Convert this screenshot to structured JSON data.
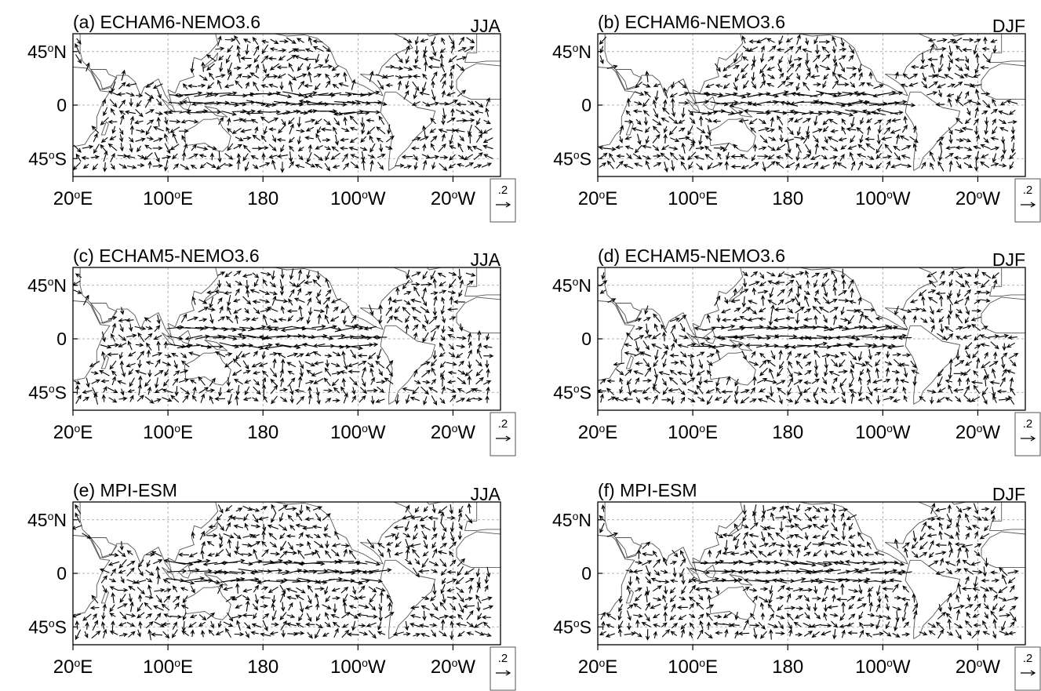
{
  "figure": {
    "panels": [
      {
        "id": "a",
        "title": "(a) ECHAM6-NEMO3.6",
        "season": "JJA",
        "seed": 11
      },
      {
        "id": "b",
        "title": "(b) ECHAM6-NEMO3.6",
        "season": "DJF",
        "seed": 23
      },
      {
        "id": "c",
        "title": "(c) ECHAM5-NEMO3.6",
        "season": "JJA",
        "seed": 37
      },
      {
        "id": "d",
        "title": "(d) ECHAM5-NEMO3.6",
        "season": "DJF",
        "seed": 41
      },
      {
        "id": "e",
        "title": "(e) MPI-ESM",
        "season": "JJA",
        "seed": 53
      },
      {
        "id": "f",
        "title": "(f) MPI-ESM",
        "season": "DJF",
        "seed": 67
      }
    ],
    "y_ticks": [
      {
        "value": 45,
        "deg": "45",
        "sup": "o",
        "hemi": "N"
      },
      {
        "value": 0,
        "deg": "0",
        "sup": "",
        "hemi": ""
      },
      {
        "value": -45,
        "deg": "45",
        "sup": "o",
        "hemi": "S"
      }
    ],
    "x_ticks": [
      {
        "value": 20,
        "deg": "20",
        "sup": "o",
        "hemi": "E"
      },
      {
        "value": 100,
        "deg": "100",
        "sup": "o",
        "hemi": "E"
      },
      {
        "value": 180,
        "deg": "180",
        "sup": "",
        "hemi": ""
      },
      {
        "value": 260,
        "deg": "100",
        "sup": "o",
        "hemi": "W"
      },
      {
        "value": 340,
        "deg": "20",
        "sup": "o",
        "hemi": "W"
      }
    ],
    "lon_range": [
      20,
      380
    ],
    "lat_range": [
      -60,
      60
    ],
    "reference_vector": ".2",
    "colors": {
      "background": "#ffffff",
      "ink": "#000000",
      "coast": "#555555",
      "grid": "#999999"
    }
  }
}
